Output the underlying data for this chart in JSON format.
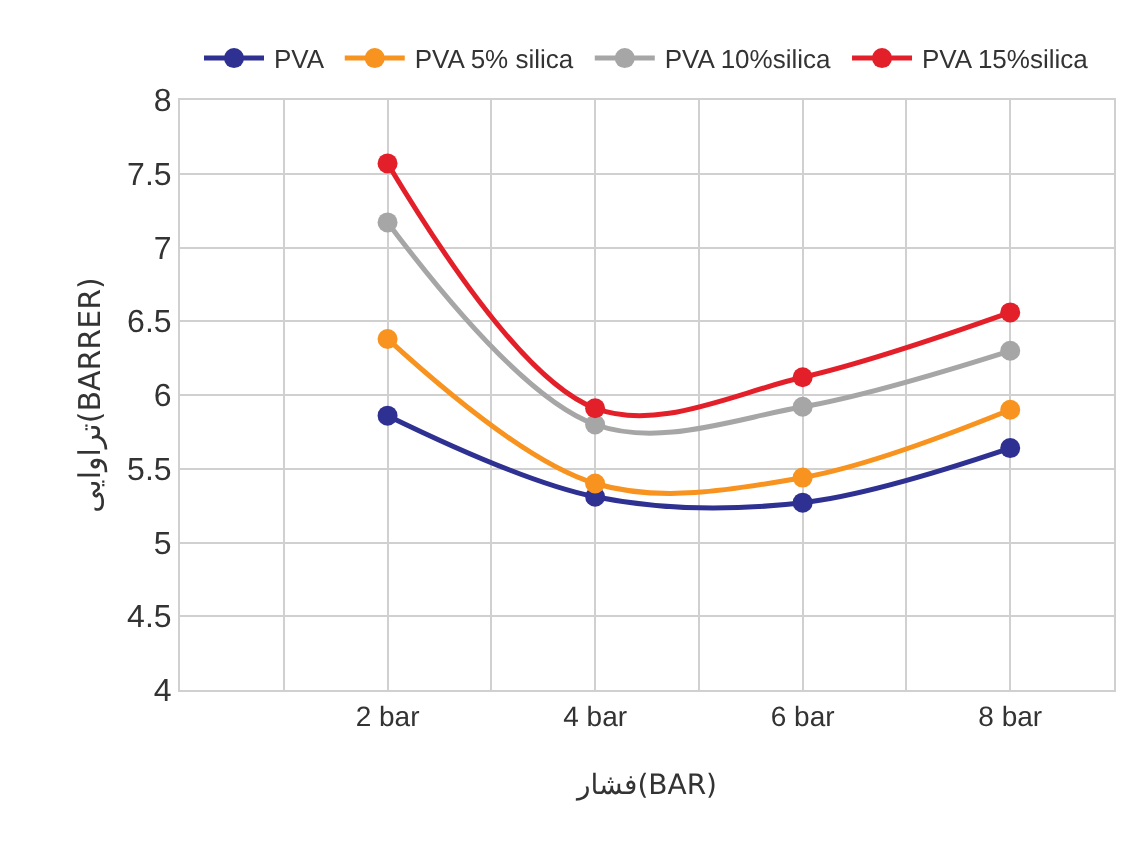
{
  "chart_data": {
    "type": "line",
    "xlabel": "فشار(BAR)",
    "ylabel": "تراوایی(BARRER)",
    "categories": [
      "2 bar",
      "4 bar",
      "6 bar",
      "8 bar"
    ],
    "series": [
      {
        "name": "PVA",
        "color": "#2e3192",
        "values": [
          5.86,
          5.31,
          5.27,
          5.64
        ]
      },
      {
        "name": "PVA 5% silica",
        "color": "#f7931e",
        "values": [
          6.38,
          5.4,
          5.44,
          5.9
        ]
      },
      {
        "name": "PVA 10%silica",
        "color": "#a6a6a6",
        "values": [
          7.17,
          5.8,
          5.92,
          6.3
        ]
      },
      {
        "name": "PVA 15%silica",
        "color": "#e3202a",
        "values": [
          7.57,
          5.91,
          6.12,
          6.56
        ]
      }
    ],
    "ylim": [
      4,
      8
    ],
    "yticks": [
      4,
      4.5,
      5,
      5.5,
      6,
      6.5,
      7,
      7.5,
      8
    ],
    "grid": true,
    "legend": "top",
    "marker": "circle",
    "line_style": "solid"
  }
}
